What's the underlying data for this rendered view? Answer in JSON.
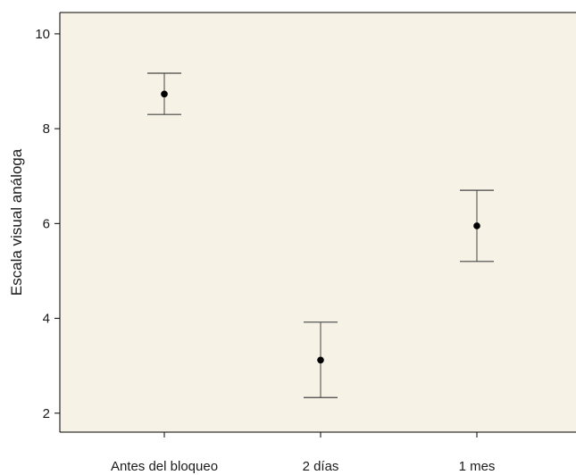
{
  "chart_data": {
    "type": "scatter",
    "title": "",
    "xlabel": "",
    "ylabel": "Escala visual análoga",
    "categories": [
      "Antes del bloqueo",
      "2 días",
      "1 mes"
    ],
    "series": [
      {
        "values": [
          8.73,
          3.12,
          5.95
        ],
        "lower": [
          8.3,
          2.33,
          5.2
        ],
        "upper": [
          9.17,
          3.92,
          6.7
        ]
      }
    ],
    "ylim": [
      1.6,
      10.45
    ],
    "yticks": [
      2,
      4,
      6,
      8,
      10
    ],
    "grid": false,
    "colors": {
      "plot_background": "#f7f2e6",
      "marker": "#000000",
      "error_bar": "#444444",
      "axis": "#000000"
    }
  }
}
